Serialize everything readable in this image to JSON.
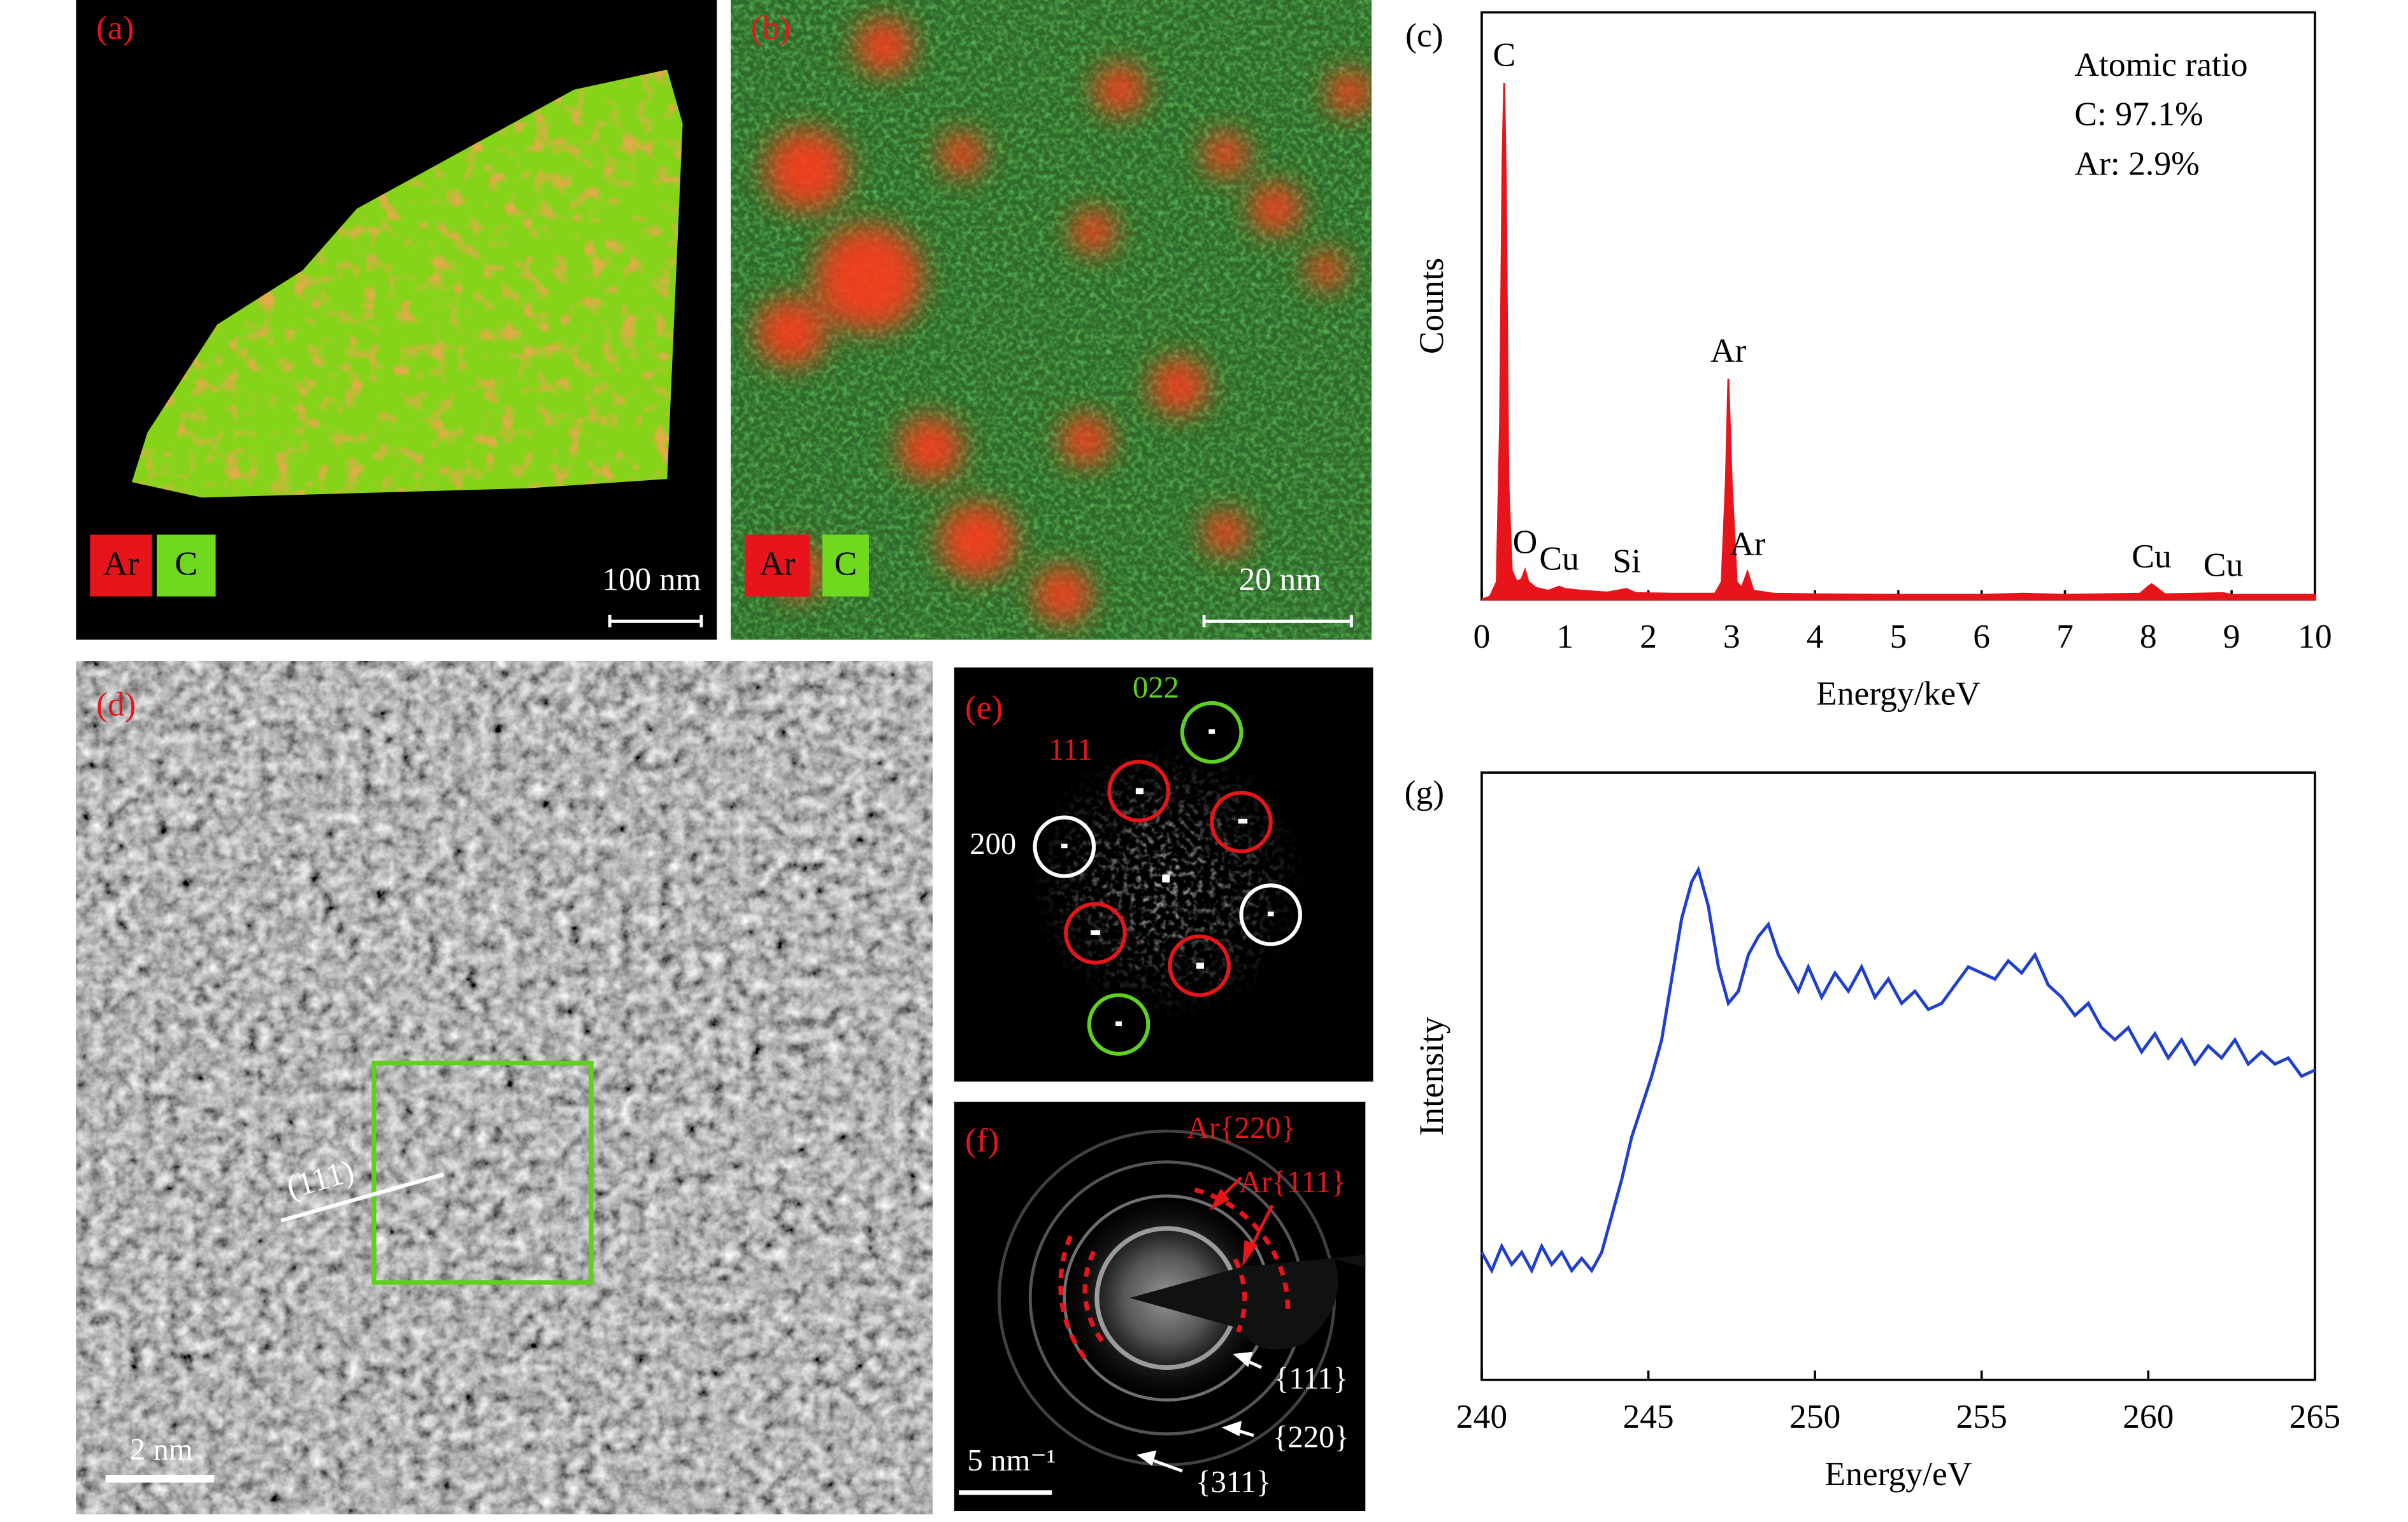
{
  "images": [
    {
      "label": "(a)",
      "legend": [
        "Ar",
        "C"
      ],
      "scale_bar": "100 nm"
    },
    {
      "label": "(b)",
      "legend": [
        "Ar",
        "C"
      ],
      "scale_bar": "20 nm"
    },
    {
      "label": "(d)",
      "scale_bar": "2 nm",
      "annotation": "(111)"
    },
    {
      "label": "(e)",
      "spots": [
        "022",
        "111",
        "200"
      ]
    },
    {
      "label": "(f)",
      "scale_bar": "5 nm⁻¹",
      "ring_labels": [
        "Ar{220}",
        "Ar{111}",
        "{111}",
        "{220}",
        "{311}"
      ]
    }
  ],
  "chart_data": [
    {
      "type": "area",
      "label": "(c)",
      "xlabel": "Energy/keV",
      "ylabel": "Counts",
      "annotations": [
        "Atomic ratio",
        "C: 97.1%",
        "Ar: 2.9%"
      ],
      "peak_labels": [
        {
          "text": "C",
          "x": 0.27
        },
        {
          "text": "O",
          "x": 0.52
        },
        {
          "text": "Cu",
          "x": 0.93
        },
        {
          "text": "Si",
          "x": 1.74
        },
        {
          "text": "Ar",
          "x": 2.96
        },
        {
          "text": "Ar",
          "x": 3.19
        },
        {
          "text": "Cu",
          "x": 8.04
        },
        {
          "text": "Cu",
          "x": 8.9
        }
      ],
      "x": [
        0,
        0.1,
        0.18,
        0.22,
        0.25,
        0.27,
        0.29,
        0.32,
        0.36,
        0.42,
        0.48,
        0.52,
        0.56,
        0.65,
        0.8,
        0.93,
        1.0,
        1.2,
        1.5,
        1.74,
        1.85,
        2.3,
        2.8,
        2.88,
        2.93,
        2.96,
        3.0,
        3.06,
        3.12,
        3.19,
        3.26,
        3.5,
        4,
        5,
        6,
        6.5,
        7,
        7.9,
        8.0,
        8.04,
        8.1,
        8.2,
        8.9,
        9,
        10
      ],
      "series": [
        {
          "color": "#e8141c",
          "values": [
            0,
            0.5,
            3,
            30,
            75,
            88,
            70,
            20,
            5,
            3,
            3.5,
            5,
            3,
            2,
            1.5,
            2.2,
            1.8,
            1.5,
            1.2,
            1.8,
            1.1,
            1,
            1,
            3,
            20,
            37.6,
            20,
            3,
            2,
            4.7,
            1.5,
            1,
            0.9,
            0.8,
            0.8,
            1,
            0.8,
            1,
            2.2,
            2.6,
            2,
            0.9,
            1.1,
            0.8,
            0.8
          ]
        }
      ],
      "xlim": [
        0,
        10
      ],
      "xticks": [
        0,
        1,
        2,
        3,
        4,
        5,
        6,
        7,
        8,
        9,
        10
      ],
      "ylim": [
        0,
        100
      ]
    },
    {
      "type": "line",
      "label": "(g)",
      "xlabel": "Energy/eV",
      "ylabel": "Intensity",
      "x": [
        240,
        240.3,
        240.6,
        240.9,
        241.2,
        241.5,
        241.8,
        242.1,
        242.4,
        242.7,
        243,
        243.3,
        243.6,
        243.9,
        244.2,
        244.5,
        244.8,
        245.1,
        245.4,
        245.7,
        246,
        246.3,
        246.5,
        246.8,
        247.1,
        247.4,
        247.7,
        248,
        248.3,
        248.6,
        248.9,
        249.2,
        249.5,
        249.8,
        250.2,
        250.6,
        251,
        251.4,
        251.8,
        252.2,
        252.6,
        253,
        253.4,
        253.8,
        254.2,
        254.6,
        255,
        255.4,
        255.8,
        256.2,
        256.6,
        257,
        257.4,
        257.8,
        258.2,
        258.6,
        259,
        259.4,
        259.8,
        260.2,
        260.6,
        261,
        261.4,
        261.8,
        262.2,
        262.6,
        263,
        263.4,
        263.8,
        264.2,
        264.6,
        265
      ],
      "series": [
        {
          "color": "#1f3fcf",
          "values": [
            21,
            18,
            22,
            19,
            21,
            18,
            22,
            19,
            21,
            18,
            20,
            18,
            21,
            27,
            33,
            40,
            45,
            50,
            56,
            66,
            76,
            82,
            84,
            78,
            68,
            62,
            64,
            70,
            73,
            75,
            70,
            67,
            64,
            68,
            63,
            67,
            64,
            68,
            63,
            66,
            62,
            64,
            61,
            62,
            65,
            68,
            67,
            66,
            69,
            67,
            70,
            65,
            63,
            60,
            62,
            58,
            56,
            58,
            54,
            57,
            53,
            56,
            52,
            55,
            53,
            56,
            52,
            54,
            52,
            53,
            50,
            51
          ]
        }
      ],
      "xlim": [
        240,
        265
      ],
      "xticks": [
        240,
        245,
        250,
        255,
        260,
        265
      ],
      "ylim": [
        0,
        100
      ]
    }
  ]
}
